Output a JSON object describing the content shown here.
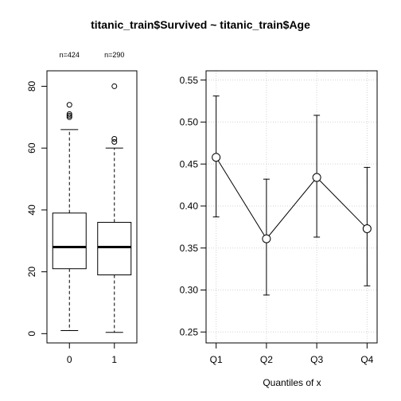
{
  "title": "titanic_train$Survived ~ titanic_train$Age",
  "chart_data": [
    {
      "type": "boxplot",
      "categories": [
        "0",
        "1"
      ],
      "count_labels": [
        "n=424",
        "n=290"
      ],
      "boxes": [
        {
          "category": "0",
          "whisker_low": 1,
          "q1": 21,
          "median": 28,
          "q3": 39,
          "whisker_high": 66,
          "outliers": [
            70,
            70.5,
            71,
            74
          ]
        },
        {
          "category": "1",
          "whisker_low": 0.42,
          "q1": 19,
          "median": 28,
          "q3": 36,
          "whisker_high": 60,
          "outliers": [
            62,
            63,
            80
          ]
        }
      ],
      "y_ticks": [
        0,
        20,
        40,
        60,
        80
      ],
      "y_tick_labels": [
        "0",
        "20",
        "40",
        "60",
        "80"
      ],
      "ylim": [
        -3,
        85
      ],
      "grid": false
    },
    {
      "type": "line_errorbar",
      "categories": [
        "Q1",
        "Q2",
        "Q3",
        "Q4"
      ],
      "values": [
        0.458,
        0.361,
        0.434,
        0.373
      ],
      "lower": [
        0.387,
        0.294,
        0.363,
        0.305
      ],
      "upper": [
        0.531,
        0.432,
        0.508,
        0.446
      ],
      "xlabel": "Quantiles of x",
      "y_ticks": [
        0.25,
        0.3,
        0.35,
        0.4,
        0.45,
        0.5,
        0.55
      ],
      "y_tick_labels": [
        "0.25",
        "0.30",
        "0.35",
        "0.40",
        "0.45",
        "0.50",
        "0.55"
      ],
      "ylim": [
        0.237,
        0.561
      ],
      "xlim": [
        0.8,
        4.2
      ],
      "grid": true
    }
  ]
}
